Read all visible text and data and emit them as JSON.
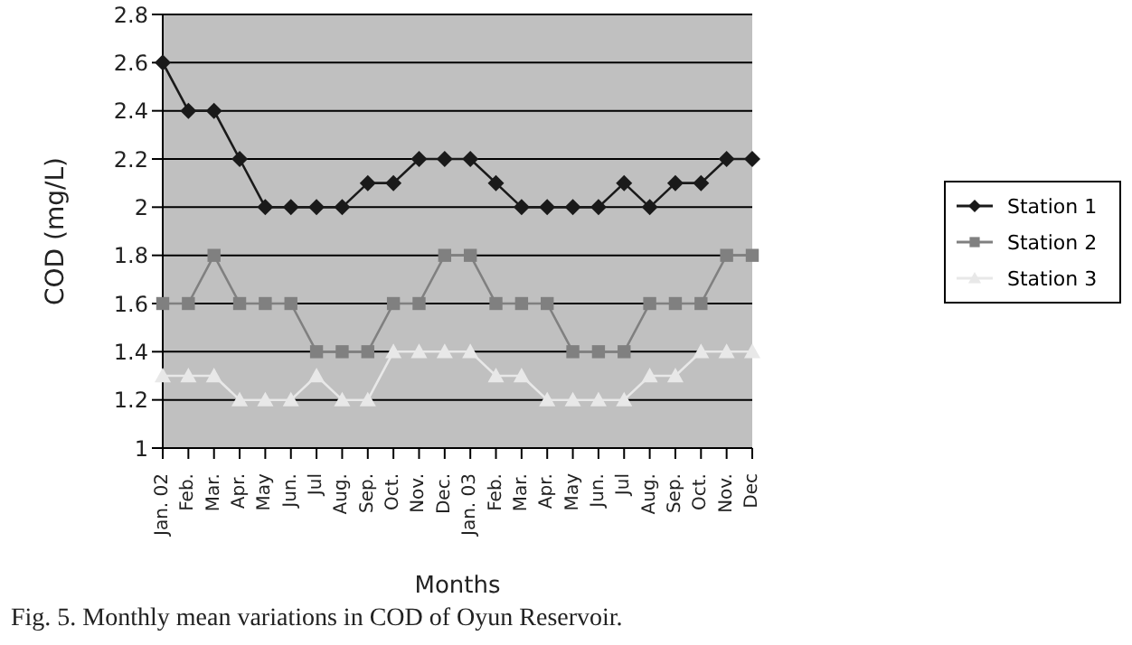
{
  "chart_data": {
    "type": "line",
    "xlabel": "Months",
    "ylabel": "COD (mg/L)",
    "categories": [
      "Jan. 02",
      "Feb.",
      "Mar.",
      "Apr.",
      "May",
      "Jun.",
      "Jul",
      "Aug.",
      "Sep.",
      "Oct.",
      "Nov.",
      "Dec.",
      "Jan. 03",
      "Feb.",
      "Mar.",
      "Apr.",
      "May",
      "Jun.",
      "Jul",
      "Aug.",
      "Sep.",
      "Oct.",
      "Nov.",
      "Dec"
    ],
    "series": [
      {
        "name": "Station 1",
        "color": "#1a1a1a",
        "marker": "diamond",
        "values": [
          2.6,
          2.4,
          2.4,
          2.2,
          2.0,
          2.0,
          2.0,
          2.0,
          2.1,
          2.1,
          2.2,
          2.2,
          2.2,
          2.1,
          2.0,
          2.0,
          2.0,
          2.0,
          2.1,
          2.0,
          2.1,
          2.1,
          2.2,
          2.2
        ]
      },
      {
        "name": "Station 2",
        "color": "#808080",
        "marker": "square",
        "values": [
          1.6,
          1.6,
          1.8,
          1.6,
          1.6,
          1.6,
          1.4,
          1.4,
          1.4,
          1.6,
          1.6,
          1.8,
          1.8,
          1.6,
          1.6,
          1.6,
          1.4,
          1.4,
          1.4,
          1.6,
          1.6,
          1.6,
          1.8,
          1.8
        ]
      },
      {
        "name": "Station 3",
        "color": "#e8e8e8",
        "marker": "triangle",
        "values": [
          1.3,
          1.3,
          1.3,
          1.2,
          1.2,
          1.2,
          1.3,
          1.2,
          1.2,
          1.4,
          1.4,
          1.4,
          1.4,
          1.3,
          1.3,
          1.2,
          1.2,
          1.2,
          1.2,
          1.3,
          1.3,
          1.4,
          1.4,
          1.4
        ]
      }
    ],
    "ylim": [
      1,
      2.8
    ],
    "yticks": [
      1,
      1.2,
      1.4,
      1.6,
      1.8,
      2,
      2.2,
      2.4,
      2.6,
      2.8
    ],
    "grid": "y",
    "legend": "right",
    "line_style": "solid",
    "annotations": [
      "Fig. 5. Monthly mean variations in COD of Oyun Reservoir."
    ]
  }
}
